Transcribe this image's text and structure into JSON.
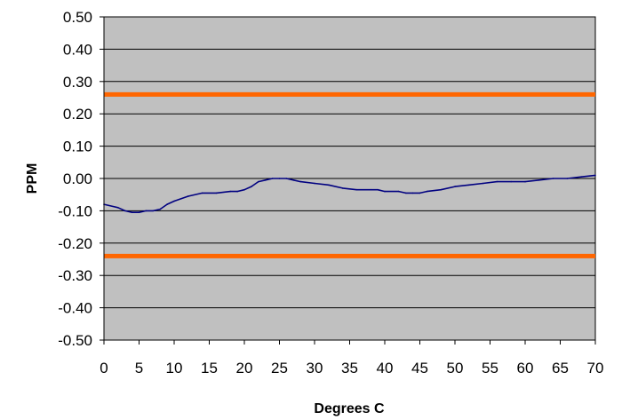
{
  "chart_data": {
    "type": "line",
    "title": "",
    "xlabel": "Degrees C",
    "ylabel": "PPM",
    "xlim": [
      0,
      70
    ],
    "ylim": [
      -0.5,
      0.5
    ],
    "x_ticks": [
      0,
      5,
      10,
      15,
      20,
      25,
      30,
      35,
      40,
      45,
      50,
      55,
      60,
      65,
      70
    ],
    "x_tick_labels": [
      "0",
      "5",
      "10",
      "15",
      "20",
      "25",
      "30",
      "35",
      "40",
      "45",
      "50",
      "55",
      "60",
      "65",
      "70"
    ],
    "y_ticks": [
      0.5,
      0.4,
      0.3,
      0.2,
      0.1,
      0.0,
      -0.1,
      -0.2,
      -0.3,
      -0.4,
      -0.5
    ],
    "y_tick_labels": [
      "0.50",
      "0.40",
      "0.30",
      "0.20",
      "0.10",
      "0.00",
      "-0.10",
      "-0.20",
      "-0.30",
      "-0.40",
      "-0.50"
    ],
    "grid": "horizontal",
    "plot_background": "#c0c0c0",
    "series": [
      {
        "color": "#000080",
        "x": [
          0,
          2,
          3,
          4,
          5,
          6,
          7,
          8,
          9,
          10,
          12,
          14,
          16,
          18,
          19,
          20,
          21,
          22,
          23,
          24,
          25,
          26,
          27,
          28,
          30,
          32,
          34,
          36,
          38,
          39,
          40,
          42,
          43,
          44,
          45,
          46,
          48,
          50,
          52,
          54,
          56,
          58,
          60,
          62,
          64,
          66,
          68,
          70
        ],
        "y": [
          -0.08,
          -0.09,
          -0.1,
          -0.105,
          -0.105,
          -0.1,
          -0.1,
          -0.095,
          -0.08,
          -0.07,
          -0.055,
          -0.045,
          -0.045,
          -0.04,
          -0.04,
          -0.035,
          -0.025,
          -0.01,
          -0.005,
          0.0,
          0.0,
          0.0,
          -0.005,
          -0.01,
          -0.015,
          -0.02,
          -0.03,
          -0.035,
          -0.035,
          -0.035,
          -0.04,
          -0.04,
          -0.045,
          -0.045,
          -0.045,
          -0.04,
          -0.035,
          -0.025,
          -0.02,
          -0.015,
          -0.01,
          -0.01,
          -0.01,
          -0.005,
          0.0,
          0.0,
          0.005,
          0.01
        ]
      }
    ],
    "reference_lines": [
      {
        "y": 0.26,
        "color": "#ff6600"
      },
      {
        "y": -0.24,
        "color": "#ff6600"
      }
    ]
  }
}
